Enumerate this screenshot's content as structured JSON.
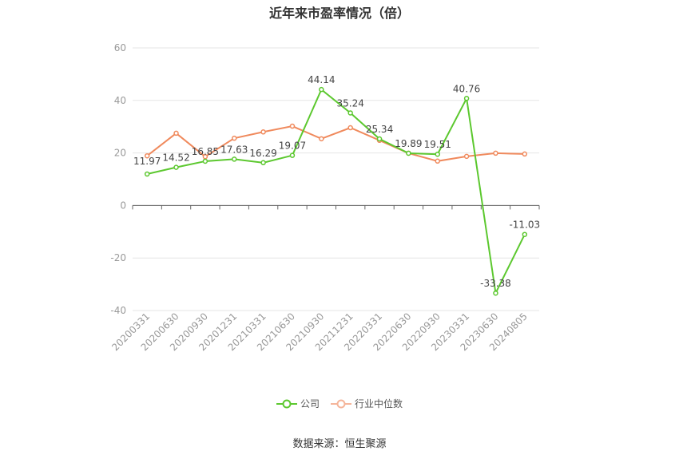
{
  "title": "近年来市盈率情况（倍）",
  "source": "数据来源：恒生聚源",
  "chart_data": {
    "type": "line",
    "title": "近年来市盈率情况（倍）",
    "categories": [
      "20200331",
      "20200630",
      "20200930",
      "20201231",
      "20210331",
      "20210630",
      "20210930",
      "20211231",
      "20220331",
      "20220630",
      "20220930",
      "20230331",
      "20230630",
      "20240805"
    ],
    "ylim": [
      -40,
      60
    ],
    "yticks": [
      -40,
      -20,
      0,
      20,
      40,
      60
    ],
    "grid": true,
    "legend_position": "bottom-center",
    "series": [
      {
        "name": "公司",
        "color": "#5cc82f",
        "values": [
          11.97,
          14.52,
          16.85,
          17.63,
          16.29,
          19.07,
          44.14,
          35.24,
          25.34,
          19.89,
          19.51,
          40.76,
          -33.38,
          -11.03
        ],
        "labels": [
          "11.97",
          "14.52",
          "16.85",
          "17.63",
          "16.29",
          "19.07",
          "44.14",
          "35.24",
          "25.34",
          "19.89",
          "19.51",
          "40.76",
          "-33.38",
          "-11.03"
        ]
      },
      {
        "name": "行业中位数",
        "color": "#f08a5d",
        "values": [
          18.9,
          27.5,
          18.6,
          25.6,
          28.0,
          30.2,
          25.4,
          29.6,
          24.8,
          19.9,
          16.9,
          18.7,
          19.9,
          19.6
        ]
      }
    ]
  }
}
